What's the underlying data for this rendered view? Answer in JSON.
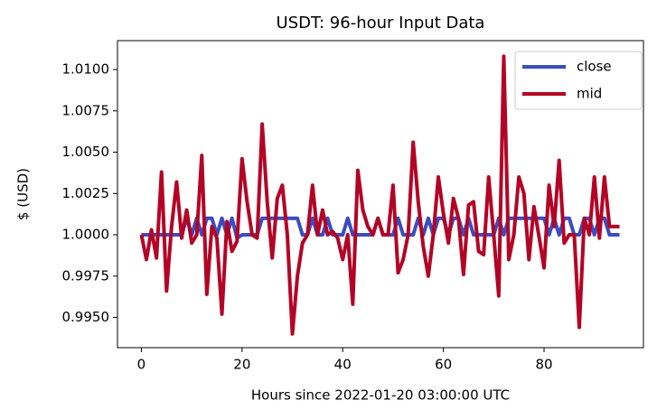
{
  "chart_data": {
    "type": "line",
    "title": "USDT: 96-hour Input Data",
    "x_label": "Hours since 2022-01-20 03:00:00 UTC",
    "y_label": "$ (USD)",
    "x": [
      0,
      1,
      2,
      3,
      4,
      5,
      6,
      7,
      8,
      9,
      10,
      11,
      12,
      13,
      14,
      15,
      16,
      17,
      18,
      19,
      20,
      21,
      22,
      23,
      24,
      25,
      26,
      27,
      28,
      29,
      30,
      31,
      32,
      33,
      34,
      35,
      36,
      37,
      38,
      39,
      40,
      41,
      42,
      43,
      44,
      45,
      46,
      47,
      48,
      49,
      50,
      51,
      52,
      53,
      54,
      55,
      56,
      57,
      58,
      59,
      60,
      61,
      62,
      63,
      64,
      65,
      66,
      67,
      68,
      69,
      70,
      71,
      72,
      73,
      74,
      75,
      76,
      77,
      78,
      79,
      80,
      81,
      82,
      83,
      84,
      85,
      86,
      87,
      88,
      89,
      90,
      91,
      92,
      93,
      94,
      95
    ],
    "series": [
      {
        "name": "close",
        "color": "#3b4cc0",
        "values": [
          1.0,
          1.0,
          1.0,
          1.0,
          1.0,
          1.0,
          1.0,
          1.0,
          1.0,
          1.001,
          1.0,
          1.001,
          1.0,
          1.001,
          1.001,
          1.0,
          1.001,
          1.0,
          1.001,
          0.9998,
          1.0,
          1.0,
          1.0,
          1.0,
          1.001,
          1.001,
          1.001,
          1.001,
          1.001,
          1.001,
          1.001,
          1.001,
          1.0,
          1.0,
          1.001,
          1.0,
          1.0,
          1.001,
          1.0,
          1.0,
          1.0,
          1.001,
          1.0,
          1.0,
          1.0,
          1.0,
          1.0,
          1.001,
          1.0,
          1.0,
          1.0,
          1.001,
          1.0,
          1.0,
          1.0,
          1.001,
          1.0,
          1.001,
          1.0,
          1.001,
          1.001,
          1.0,
          1.001,
          1.001,
          1.0,
          1.001,
          1.0,
          1.0,
          1.0,
          1.0,
          1.0,
          1.001,
          1.0,
          1.001,
          1.001,
          1.001,
          1.001,
          1.001,
          1.001,
          1.001,
          1.001,
          1.0,
          1.001,
          1.0,
          1.001,
          1.001,
          1.0,
          1.0,
          1.001,
          1.001,
          1.0,
          1.001,
          1.001,
          1.0,
          1.0,
          1.0
        ]
      },
      {
        "name": "mid",
        "color": "#b40426",
        "values": [
          1.0,
          0.9985,
          1.0003,
          0.9986,
          1.0038,
          0.9966,
          1.0005,
          1.0032,
          0.9998,
          1.0015,
          0.9995,
          1.0,
          1.0048,
          0.9964,
          1.0005,
          0.9998,
          0.9952,
          1.0008,
          0.999,
          0.9996,
          1.0046,
          1.002,
          1.0,
          0.9998,
          1.0067,
          1.002,
          0.9986,
          1.0022,
          1.003,
          1.0,
          0.994,
          0.9975,
          0.9995,
          1.0,
          1.003,
          1.0,
          1.0015,
          1.0,
          1.0002,
          0.9998,
          0.9985,
          1.0,
          0.9958,
          1.0039,
          1.0015,
          1.0005,
          1.0,
          1.001,
          1.0,
          1.0,
          1.003,
          0.9977,
          0.9985,
          1.0,
          1.0056,
          1.002,
          0.9993,
          0.9975,
          1.0,
          1.0035,
          1.0013,
          0.9995,
          1.0022,
          1.001,
          0.9976,
          1.0018,
          1.002,
          0.999,
          0.9988,
          1.0035,
          1.0,
          0.9963,
          1.0108,
          0.9985,
          1.0,
          1.0035,
          1.0025,
          0.9985,
          1.0017,
          0.9999,
          0.998,
          1.003,
          1.0005,
          1.0045,
          0.9995,
          1.0,
          1.0,
          0.9944,
          1.001,
          1.0,
          1.0035,
          0.9998,
          1.0035,
          1.0005,
          1.0005,
          1.0005
        ]
      }
    ],
    "xlim": [
      -4.75,
      99.75
    ],
    "ylim": [
      0.99317,
      1.01175
    ],
    "xticks": [
      0,
      20,
      40,
      60,
      80
    ],
    "yticks": [
      {
        "value": 0.995,
        "label": "0.9950"
      },
      {
        "value": 0.9975,
        "label": "0.9975"
      },
      {
        "value": 1.0,
        "label": "1.0000"
      },
      {
        "value": 1.0025,
        "label": "1.0025"
      },
      {
        "value": 1.005,
        "label": "1.0050"
      },
      {
        "value": 1.0075,
        "label": "1.0075"
      },
      {
        "value": 1.01,
        "label": "1.0100"
      }
    ],
    "legend": "upper right"
  }
}
